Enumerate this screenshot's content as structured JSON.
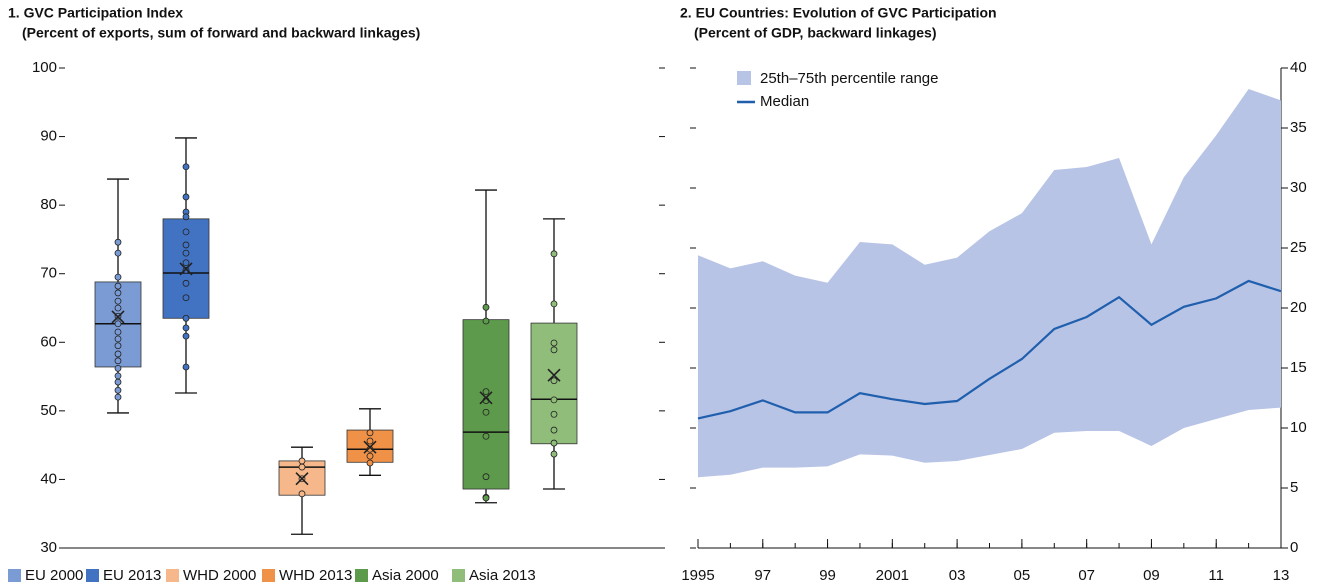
{
  "chart_data": [
    {
      "type": "box",
      "title": "1. GVC Participation Index",
      "subtitle": "(Percent of exports, sum of forward and backward linkages)",
      "ylim": [
        30,
        100
      ],
      "yticks": [
        30,
        40,
        50,
        60,
        70,
        80,
        90,
        100
      ],
      "series": [
        {
          "name": "EU 2000",
          "color": "#7b9bd4",
          "whisker_low": 49.7,
          "q1": 56.4,
          "median": 62.7,
          "q3": 68.8,
          "whisker_high": 83.8,
          "mean": 63.7,
          "points": [
            74.6,
            73,
            69.5,
            68.2,
            67.2,
            66,
            65,
            63.8,
            62.7,
            61.5,
            60.5,
            59.5,
            58.3,
            57.3,
            56.2,
            55.1,
            54.2,
            53,
            52
          ]
        },
        {
          "name": "EU 2013",
          "color": "#4273c2",
          "whisker_low": 52.6,
          "q1": 63.5,
          "median": 70.1,
          "q3": 78,
          "whisker_high": 89.8,
          "mean": 70.7,
          "points": [
            85.6,
            81.2,
            79,
            78.3,
            76.1,
            74.2,
            73,
            71.6,
            70.5,
            68.6,
            66.5,
            63.5,
            62.1,
            60.9,
            56.4
          ]
        },
        {
          "name": "WHD 2000",
          "color": "#f6b88a",
          "whisker_low": 32,
          "q1": 37.7,
          "median": 41.8,
          "q3": 42.7,
          "whisker_high": 44.7,
          "mean": 40.1,
          "points": [
            42.7,
            41.8,
            40.1,
            37.9
          ]
        },
        {
          "name": "WHD 2013",
          "color": "#ef9147",
          "whisker_low": 40.6,
          "q1": 42.5,
          "median": 44.4,
          "q3": 47.2,
          "whisker_high": 50.3,
          "mean": 44.7,
          "points": [
            46.8,
            45.6,
            44.4,
            43.4,
            42.4
          ]
        },
        {
          "name": "Asia 2000",
          "color": "#5d9a4b",
          "whisker_low": 36.6,
          "q1": 38.6,
          "median": 46.9,
          "q3": 63.3,
          "whisker_high": 82.2,
          "mean": 51.9,
          "points": [
            65.1,
            63.1,
            52.8,
            51.5,
            49.8,
            46.3,
            40.4,
            37.4,
            37.3
          ]
        },
        {
          "name": "Asia 2013",
          "color": "#90bd7a",
          "whisker_low": 38.6,
          "q1": 45.2,
          "median": 51.7,
          "q3": 62.8,
          "whisker_high": 78,
          "mean": 55.2,
          "points": [
            72.9,
            65.6,
            59.9,
            58.9,
            54.4,
            51.6,
            49.5,
            47.2,
            45.3,
            43.7
          ]
        }
      ]
    },
    {
      "type": "band",
      "title": "2. EU Countries: Evolution of GVC Participation",
      "subtitle": "(Percent of GDP, backward linkages)",
      "x": [
        1995,
        1996,
        1997,
        1998,
        1999,
        2000,
        2001,
        2002,
        2003,
        2004,
        2005,
        2006,
        2007,
        2008,
        2009,
        2010,
        2011,
        2012,
        2013
      ],
      "xlim": [
        1995,
        2013
      ],
      "xticks": [
        1995,
        {
          "value": 1997,
          "label": "97"
        },
        {
          "value": 1999,
          "label": "99"
        },
        2001,
        {
          "value": 2003,
          "label": "03"
        },
        {
          "value": 2005,
          "label": "05"
        },
        {
          "value": 2007,
          "label": "07"
        },
        {
          "value": 2009,
          "label": "09"
        },
        {
          "value": 2011,
          "label": "11"
        },
        {
          "value": 2013,
          "label": "13"
        }
      ],
      "y2lim": [
        0,
        40
      ],
      "y2ticks": [
        0,
        5,
        10,
        15,
        20,
        25,
        30,
        35,
        40
      ],
      "series": [
        {
          "name": "25th–75th percentile range",
          "color": "#b8c4e6",
          "axis": "y2",
          "low": [
            5.9,
            6.1,
            6.7,
            6.7,
            6.8,
            7.8,
            7.7,
            7.1,
            7.25,
            7.75,
            8.25,
            9.6,
            9.75,
            9.75,
            8.5,
            10,
            10.75,
            11.5,
            11.7
          ],
          "high": [
            24.4,
            23.3,
            23.9,
            22.7,
            22.1,
            25.5,
            25.3,
            23.6,
            24.2,
            26.4,
            27.9,
            31.5,
            31.75,
            32.5,
            25.3,
            30.9,
            34.4,
            38.25,
            37.3
          ]
        },
        {
          "name": "Median",
          "color": "#1f5fad",
          "axis": "y2",
          "values": [
            10.8,
            11.4,
            12.3,
            11.3,
            11.3,
            12.9,
            12.4,
            12,
            12.25,
            14.1,
            15.75,
            18.25,
            19.25,
            20.9,
            18.6,
            20.1,
            20.8,
            22.25,
            21.4
          ]
        }
      ]
    }
  ]
}
